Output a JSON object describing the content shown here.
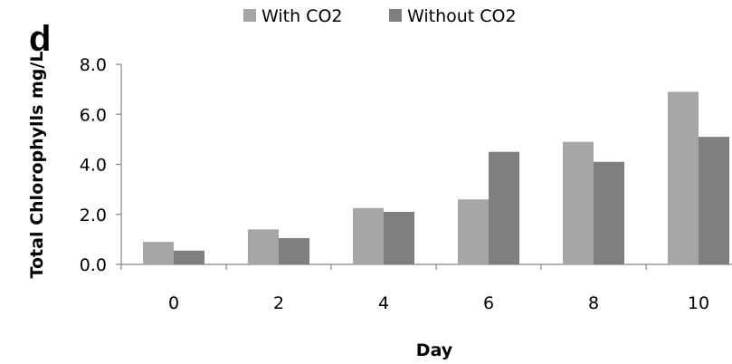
{
  "panel_label": "d",
  "chart_data": {
    "type": "bar",
    "categories": [
      "0",
      "2",
      "4",
      "6",
      "8",
      "10"
    ],
    "series": [
      {
        "name": "With CO2",
        "color": "#a6a6a6",
        "values": [
          0.9,
          1.4,
          2.25,
          2.6,
          4.9,
          6.9
        ]
      },
      {
        "name": "Without CO2",
        "color": "#7f7f7f",
        "values": [
          0.55,
          1.05,
          2.1,
          4.5,
          4.1,
          5.1
        ]
      }
    ],
    "xlabel": "Day",
    "ylabel": "Total Chlorophylls mg/L",
    "ylim": [
      0,
      8
    ],
    "yticks": [
      "0.0",
      "2.0",
      "4.0",
      "6.0",
      "8.0"
    ],
    "grid": false,
    "legend_position": "top"
  }
}
